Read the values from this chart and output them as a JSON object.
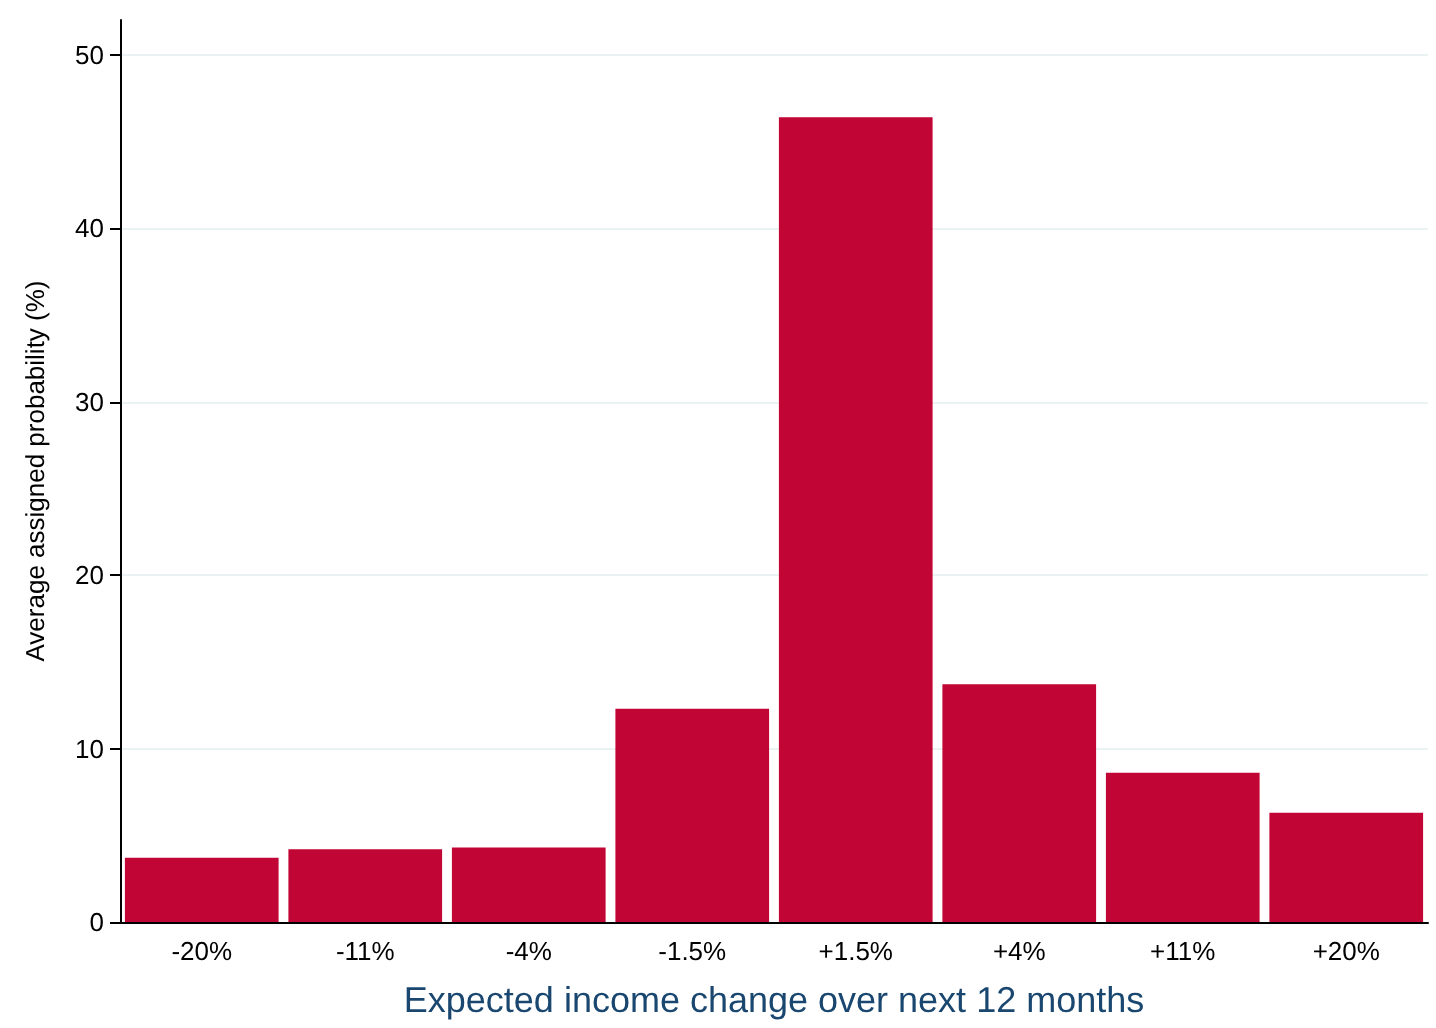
{
  "chart_data": {
    "type": "bar",
    "xlabel": "Expected income change over next 12 months",
    "ylabel": "Average assigned probability (%)",
    "categories": [
      "-20%",
      "-11%",
      "-4%",
      "-1.5%",
      "+1.5%",
      "+4%",
      "+11%",
      "+20%"
    ],
    "values": [
      3.7,
      4.2,
      4.3,
      12.3,
      46.4,
      13.7,
      8.6,
      6.3
    ],
    "color": "#c10534",
    "ylim": [
      0,
      52
    ],
    "yticks": [
      0,
      10,
      20,
      30,
      40,
      50
    ],
    "grid": "y"
  }
}
